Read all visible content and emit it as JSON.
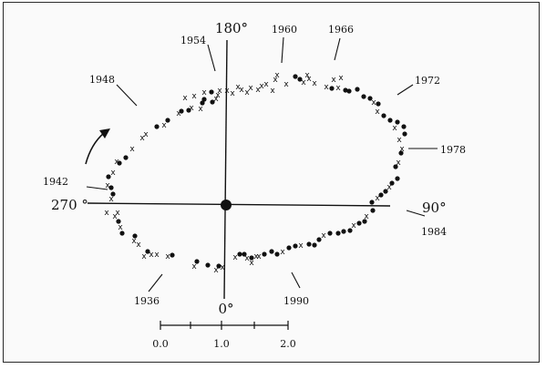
{
  "diagram": {
    "axis_labels": {
      "top": "180°",
      "left": "270 °",
      "right": "90°",
      "bottom": "0°"
    },
    "year_labels": [
      "1936",
      "1942",
      "1948",
      "1954",
      "1960",
      "1966",
      "1972",
      "1978",
      "1984",
      "1990"
    ],
    "scale_labels": [
      "0.0",
      "1.0",
      "2.0"
    ],
    "colors": {
      "ink": "#111111",
      "frame": "#2a2a2a",
      "background": "#fafafa"
    },
    "marker_types": [
      "dot",
      "cross"
    ],
    "arrow_icon": "curved-arrow-icon"
  }
}
